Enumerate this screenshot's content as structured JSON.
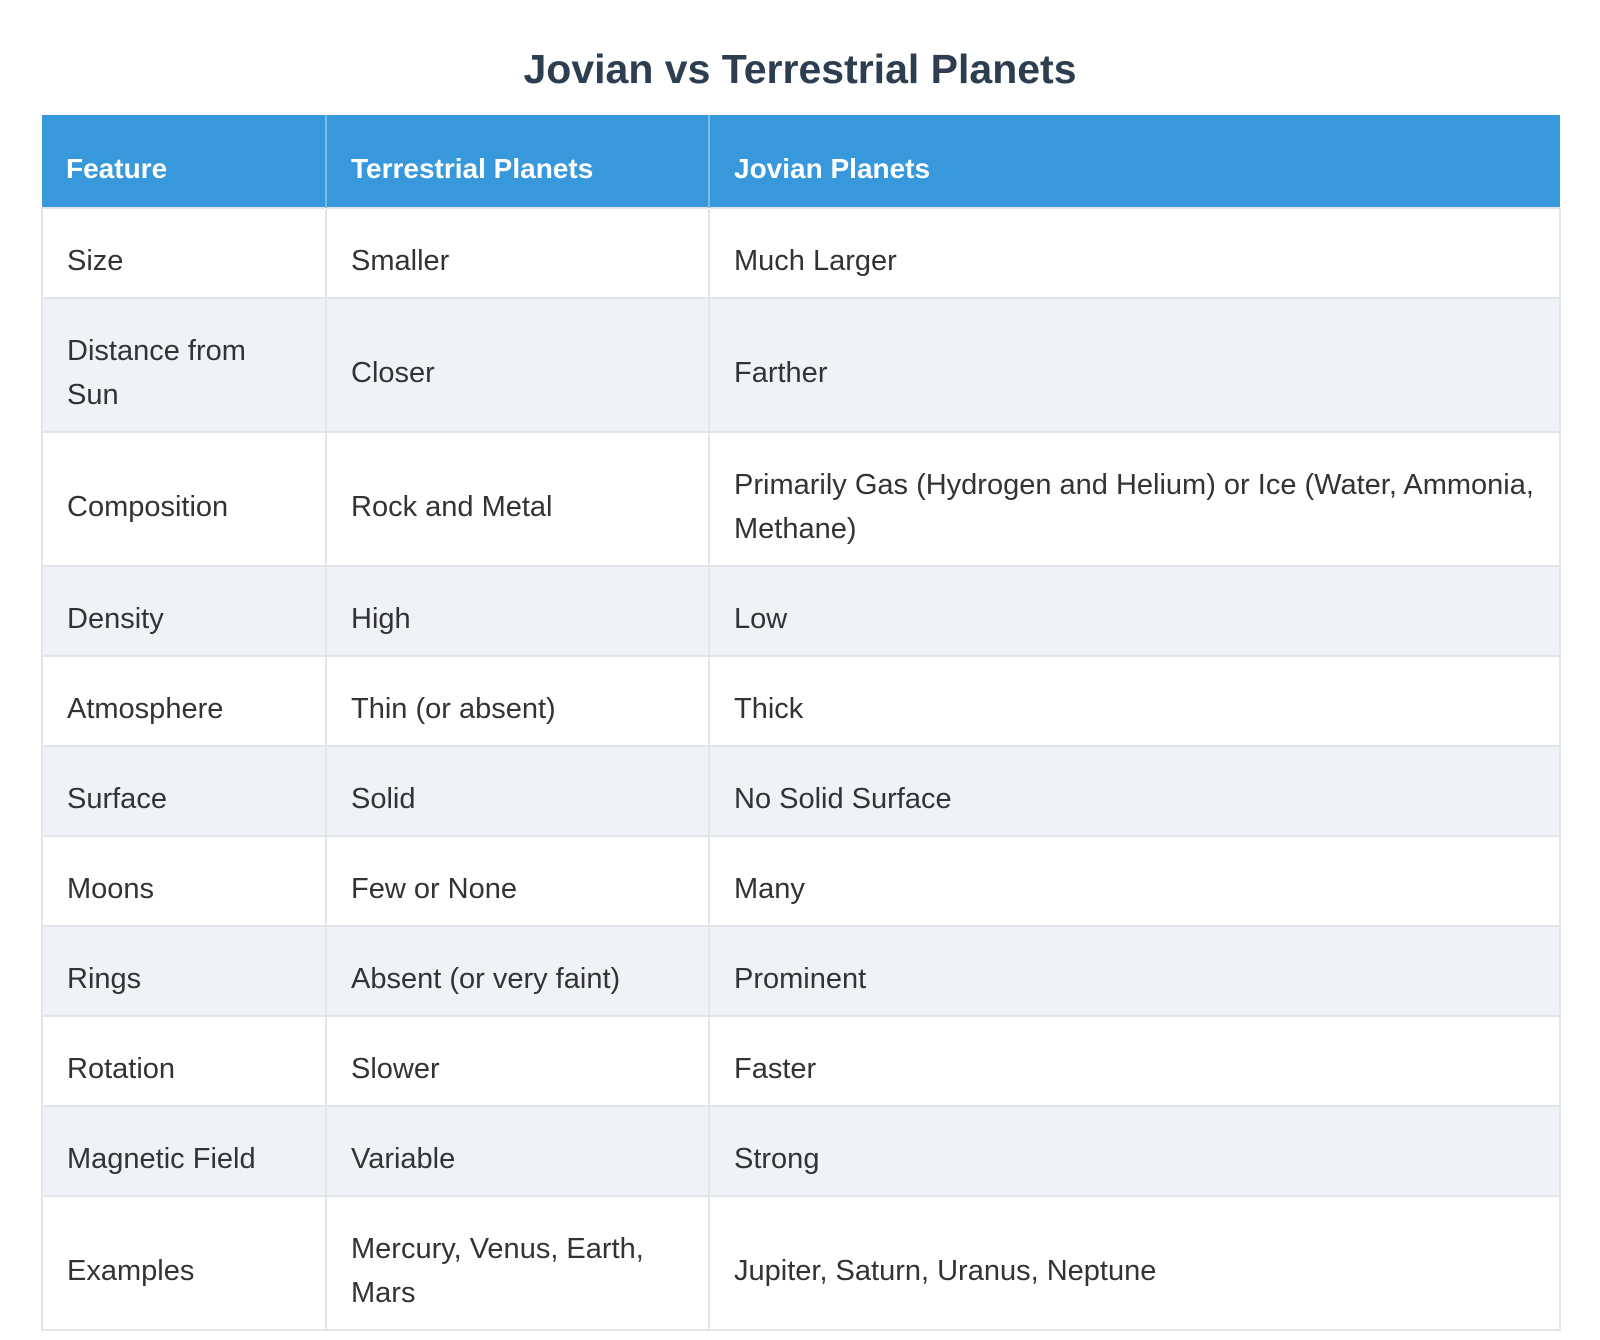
{
  "title": "Jovian vs Terrestrial Planets",
  "colors": {
    "header_bg": "#3798db",
    "header_text": "#ffffff",
    "stripe_bg": "#eff3f8",
    "row_bg": "#ffffff",
    "border": "#e2e5e9",
    "title_text": "#2c3e50",
    "body_text": "#333333"
  },
  "chart_data": {
    "type": "table",
    "title": "Jovian vs Terrestrial Planets",
    "columns": [
      "Feature",
      "Terrestrial Planets",
      "Jovian Planets"
    ],
    "rows": [
      [
        "Size",
        "Smaller",
        "Much Larger"
      ],
      [
        "Distance from Sun",
        "Closer",
        "Farther"
      ],
      [
        "Composition",
        "Rock and Metal",
        "Primarily Gas (Hydrogen and Helium) or Ice (Water, Ammonia, Methane)"
      ],
      [
        "Density",
        "High",
        "Low"
      ],
      [
        "Atmosphere",
        "Thin (or absent)",
        "Thick"
      ],
      [
        "Surface",
        "Solid",
        "No Solid Surface"
      ],
      [
        "Moons",
        "Few or None",
        "Many"
      ],
      [
        "Rings",
        "Absent (or very faint)",
        "Prominent"
      ],
      [
        "Rotation",
        "Slower",
        "Faster"
      ],
      [
        "Magnetic Field",
        "Variable",
        "Strong"
      ],
      [
        "Examples",
        "Mercury, Venus, Earth, Mars",
        "Jupiter, Saturn, Uranus, Neptune"
      ]
    ],
    "layout": {
      "striped_rows": "even rows shaded light blue-gray",
      "header_style": "blue background, white bold text, left-aligned"
    }
  },
  "table": {
    "headers": {
      "feature": "Feature",
      "terrestrial": "Terrestrial Planets",
      "jovian": "Jovian Planets"
    },
    "rows": [
      {
        "feature": "Size",
        "terrestrial": "Smaller",
        "jovian": "Much Larger"
      },
      {
        "feature": "Distance from Sun",
        "terrestrial": "Closer",
        "jovian": "Farther"
      },
      {
        "feature": "Composition",
        "terrestrial": "Rock and Metal",
        "jovian": "Primarily Gas (Hydrogen and Helium) or Ice (Water, Ammonia, Methane)"
      },
      {
        "feature": "Density",
        "terrestrial": "High",
        "jovian": "Low"
      },
      {
        "feature": "Atmosphere",
        "terrestrial": "Thin (or absent)",
        "jovian": "Thick"
      },
      {
        "feature": "Surface",
        "terrestrial": "Solid",
        "jovian": "No Solid Surface"
      },
      {
        "feature": "Moons",
        "terrestrial": "Few or None",
        "jovian": "Many"
      },
      {
        "feature": "Rings",
        "terrestrial": "Absent (or very faint)",
        "jovian": "Prominent"
      },
      {
        "feature": "Rotation",
        "terrestrial": "Slower",
        "jovian": "Faster"
      },
      {
        "feature": "Magnetic Field",
        "terrestrial": "Variable",
        "jovian": "Strong"
      },
      {
        "feature": "Examples",
        "terrestrial": "Mercury, Venus, Earth, Mars",
        "jovian": "Jupiter, Saturn, Uranus, Neptune"
      }
    ]
  }
}
